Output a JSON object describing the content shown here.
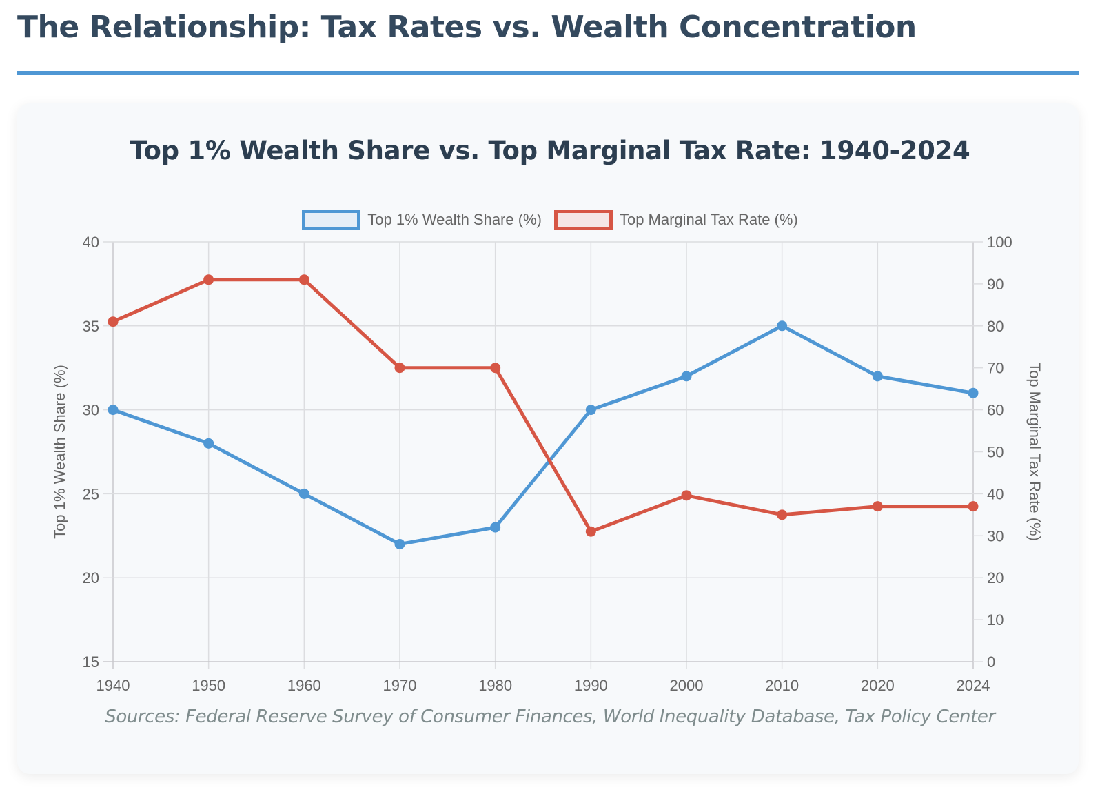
{
  "page": {
    "title": "The Relationship: Tax Rates vs. Wealth Concentration",
    "accent_color": "#4f97d4"
  },
  "card": {
    "sources": "Sources: Federal Reserve Survey of Consumer Finances, World Inequality Database, Tax Policy Center"
  },
  "chart_data": {
    "type": "line",
    "title": "Top 1% Wealth Share vs. Top Marginal Tax Rate: 1940-2024",
    "x": [
      "1940",
      "1950",
      "1960",
      "1970",
      "1980",
      "1990",
      "2000",
      "2010",
      "2020",
      "2024"
    ],
    "series": [
      {
        "name": "Top 1% Wealth Share (%)",
        "axis": "left",
        "color": "#4f97d4",
        "fill": "#e6eef7",
        "values": [
          30,
          28,
          25,
          22,
          23,
          30,
          32,
          35,
          32,
          31
        ]
      },
      {
        "name": "Top Marginal Tax Rate (%)",
        "axis": "right",
        "color": "#d65645",
        "fill": "#f5e6e5",
        "values": [
          81,
          91,
          91,
          70,
          70,
          31,
          39.6,
          35,
          37,
          37
        ]
      }
    ],
    "y_left": {
      "label": "Top 1% Wealth Share (%)",
      "range": [
        15,
        40
      ],
      "ticks": [
        "15",
        "20",
        "25",
        "30",
        "35",
        "40"
      ]
    },
    "y_right": {
      "label": "Top Marginal Tax Rate (%)",
      "range": [
        0,
        100
      ],
      "ticks": [
        "0",
        "10",
        "20",
        "30",
        "40",
        "50",
        "60",
        "70",
        "80",
        "90",
        "100"
      ]
    },
    "grid": true,
    "legend_position": "top-center"
  }
}
